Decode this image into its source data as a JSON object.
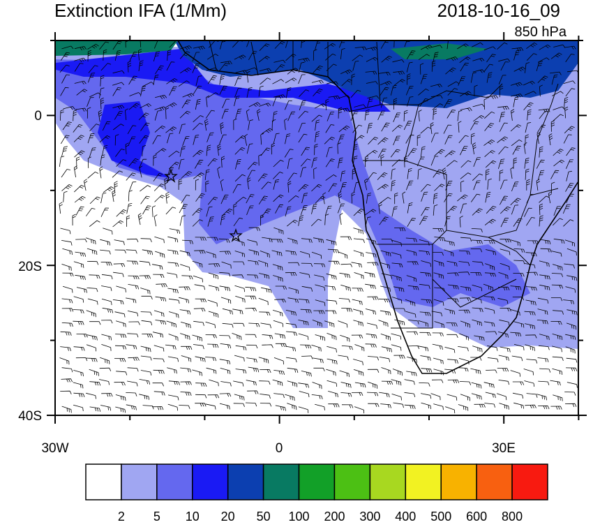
{
  "header": {
    "title": "Extinction IFA (1/Mm)",
    "date": "2018-10-16_09",
    "level": "850 hPa"
  },
  "axes": {
    "x_labels": [
      "30W",
      "0",
      "30E"
    ],
    "y_labels": [
      "0",
      "20S",
      "40S"
    ]
  },
  "colorbar": {
    "colors": [
      "#ffffff",
      "#a0a6f2",
      "#6468ef",
      "#1a1af4",
      "#0c3fb0",
      "#087a62",
      "#12a028",
      "#4cc014",
      "#a8d820",
      "#f2f222",
      "#f8b200",
      "#f86010",
      "#f81a10"
    ],
    "levels": [
      2,
      5,
      10,
      20,
      50,
      100,
      200,
      300,
      400,
      500,
      600,
      800
    ]
  }
}
